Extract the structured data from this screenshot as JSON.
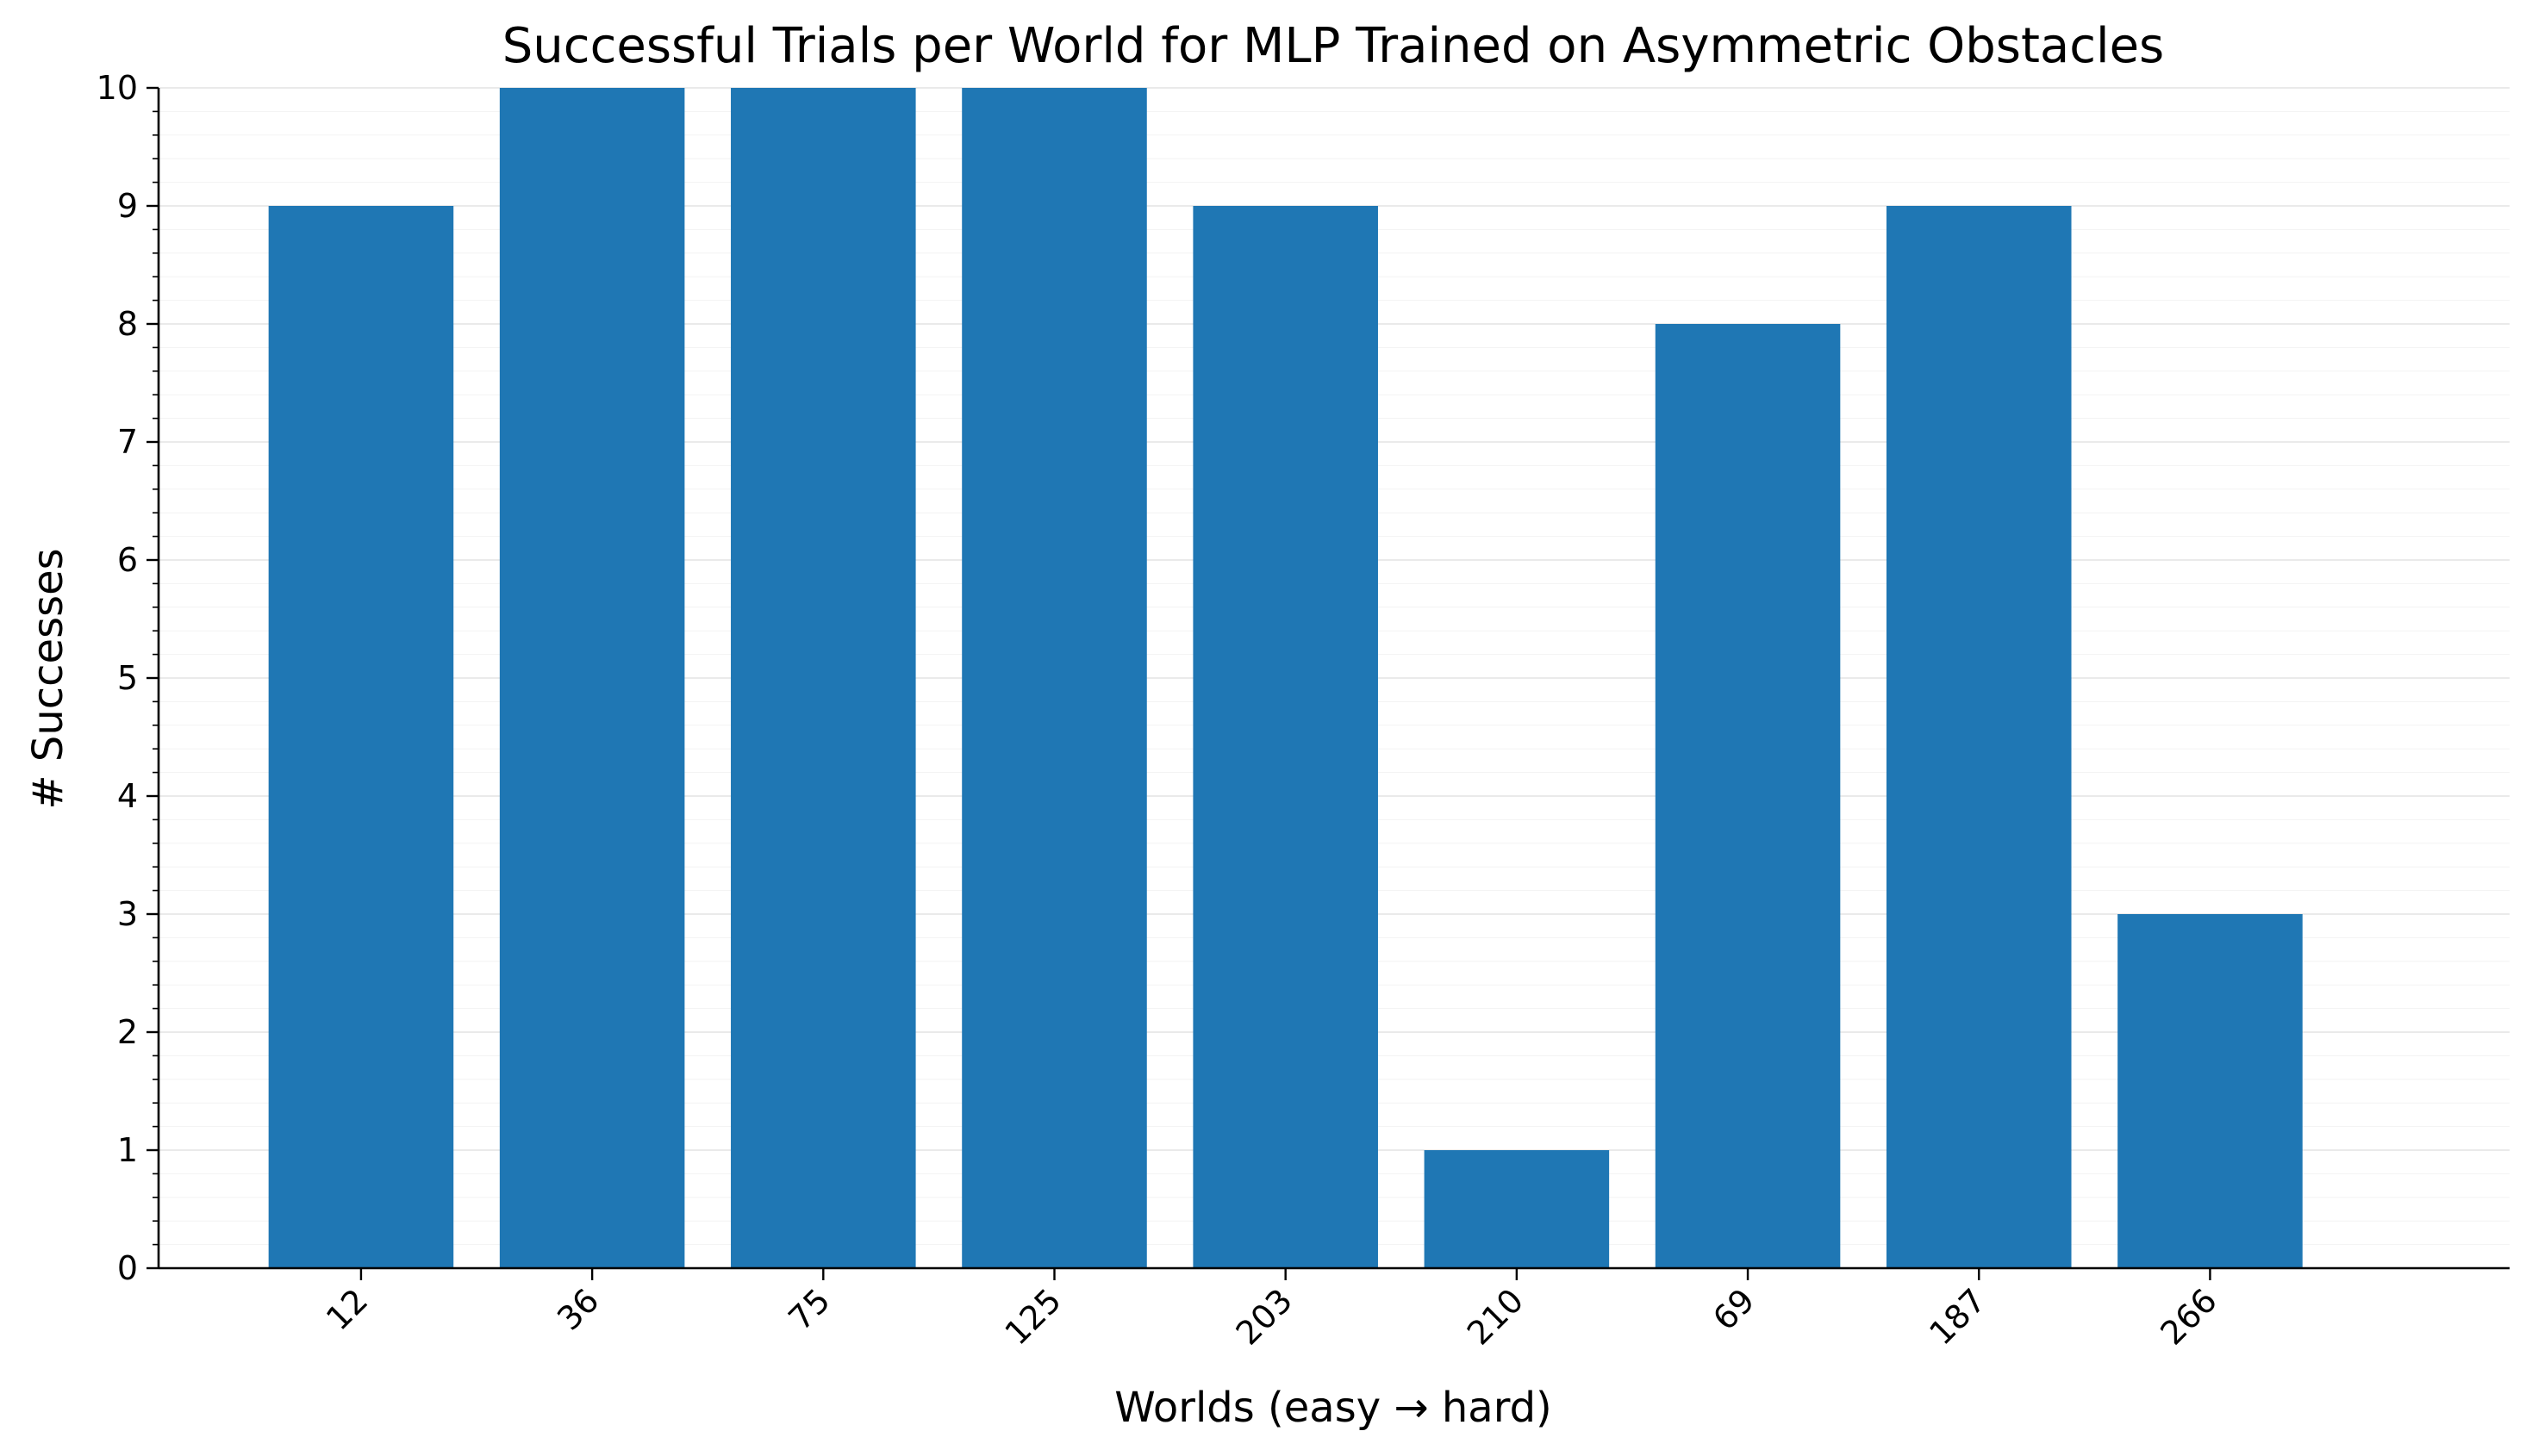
{
  "chart_data": {
    "type": "bar",
    "title": "Successful Trials per World for MLP Trained on Asymmetric Obstacles",
    "xlabel": "Worlds (easy → hard)",
    "ylabel": "# Successes",
    "categories": [
      "12",
      "36",
      "75",
      "125",
      "203",
      "210",
      "69",
      "187",
      "266"
    ],
    "values": [
      9,
      10,
      10,
      10,
      9,
      1,
      8,
      9,
      3
    ],
    "ylim": [
      0,
      10
    ],
    "yticks": [
      "0",
      "1",
      "2",
      "3",
      "4",
      "5",
      "6",
      "7",
      "8",
      "9",
      "10"
    ],
    "grid": true,
    "x_tick_rotation": 45,
    "bar_color": "#1f77b4"
  }
}
